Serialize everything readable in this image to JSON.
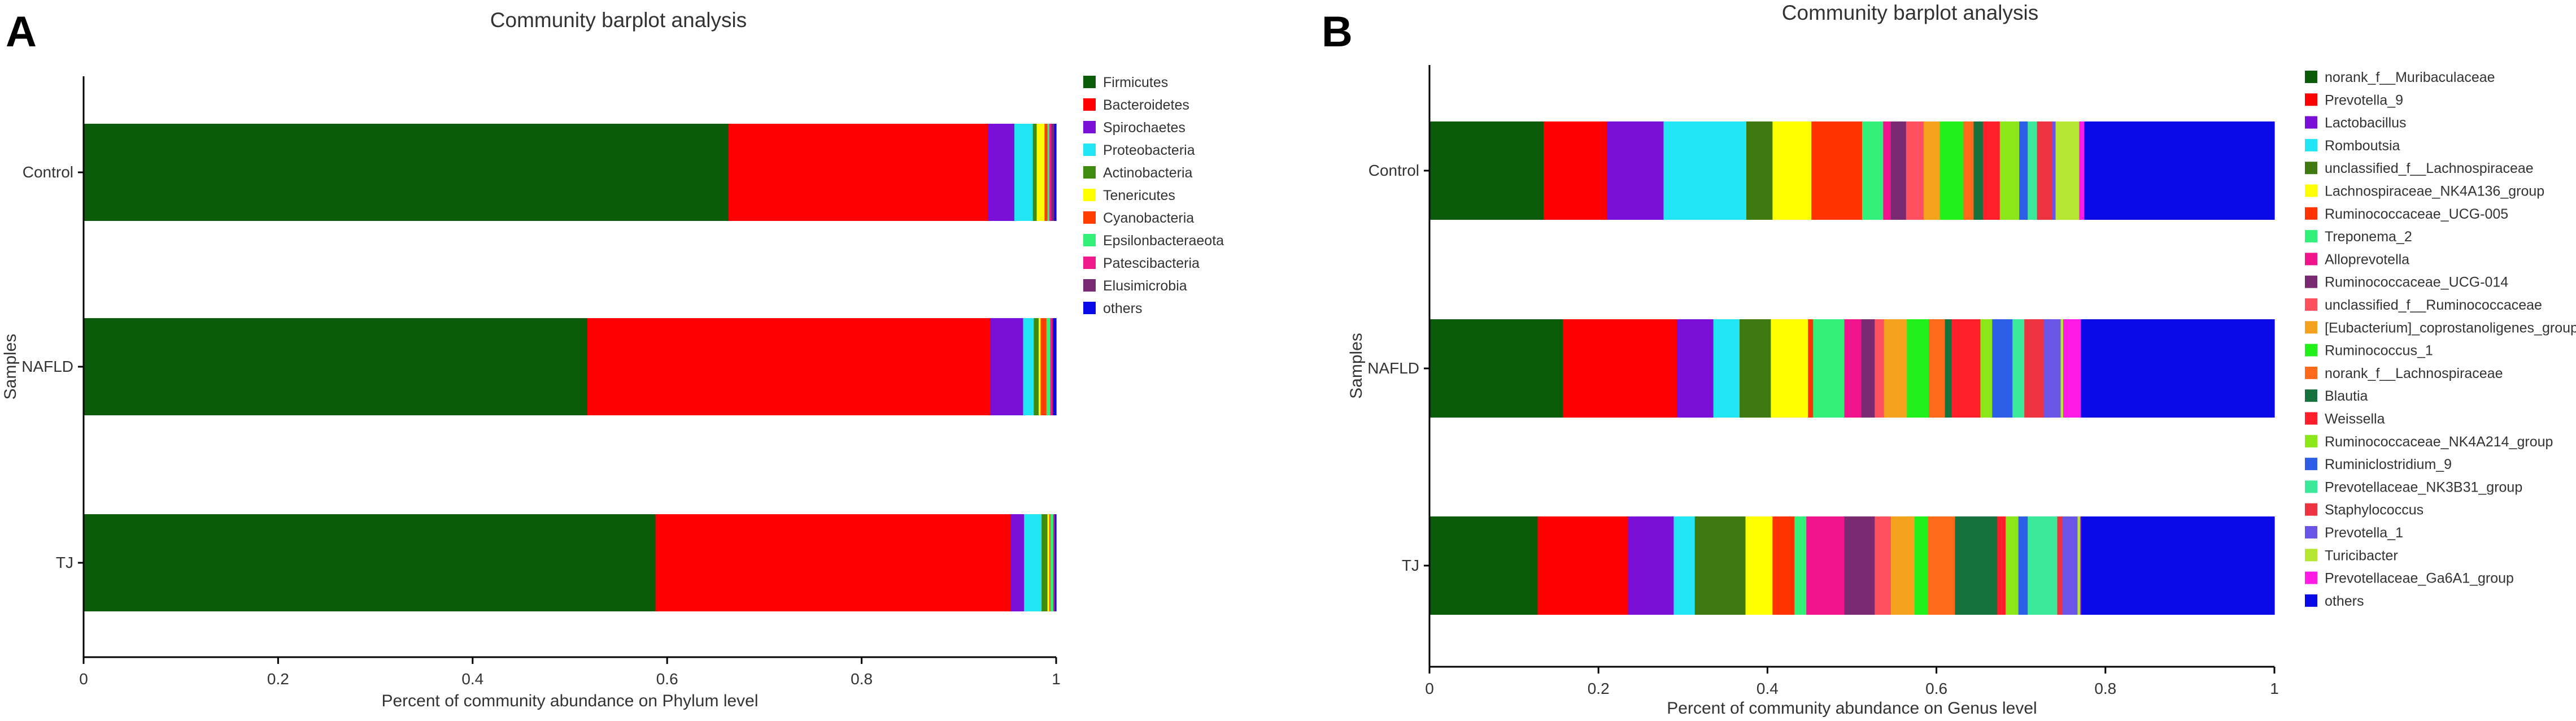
{
  "chart_data": [
    {
      "type": "bar",
      "orientation": "horizontal-stacked",
      "panel_label": "A",
      "title": "Community barplot analysis",
      "xlabel": "Percent of community abundance on Phylum level",
      "ylabel": "Samples",
      "xlim": [
        0,
        1
      ],
      "xticks": [
        "0",
        "0.2",
        "0.4",
        "0.6",
        "0.8",
        "1"
      ],
      "categories": [
        "Control",
        "NAFLD",
        "TJ"
      ],
      "legend_position": "right",
      "series": [
        {
          "name": "Firmicutes",
          "color": "#0a5c0a",
          "values": [
            0.663,
            0.518,
            0.588
          ]
        },
        {
          "name": "Bacteroidetes",
          "color": "#ff0000",
          "values": [
            0.267,
            0.414,
            0.365
          ]
        },
        {
          "name": "Spirochaetes",
          "color": "#7a0fd8",
          "values": [
            0.027,
            0.034,
            0.014
          ]
        },
        {
          "name": "Proteobacteria",
          "color": "#22e6f5",
          "values": [
            0.019,
            0.011,
            0.018
          ]
        },
        {
          "name": "Actinobacteria",
          "color": "#3f8a0f",
          "values": [
            0.004,
            0.005,
            0.006
          ]
        },
        {
          "name": "Tenericutes",
          "color": "#ffff00",
          "values": [
            0.008,
            0.002,
            0.002
          ]
        },
        {
          "name": "Cyanobacteria",
          "color": "#ff3d00",
          "values": [
            0.003,
            0.006,
            0.001
          ]
        },
        {
          "name": "Epsilonbacteraeota",
          "color": "#33f07a",
          "values": [
            0.002,
            0.004,
            0.003
          ]
        },
        {
          "name": "Patescibacteria",
          "color": "#f01a8c",
          "values": [
            0.002,
            0.002,
            0.001
          ]
        },
        {
          "name": "Elusimicrobia",
          "color": "#7a2a70",
          "values": [
            0.003,
            0.001,
            0.001
          ]
        },
        {
          "name": "others",
          "color": "#0a0ae6",
          "values": [
            0.002,
            0.003,
            0.001
          ]
        }
      ]
    },
    {
      "type": "bar",
      "orientation": "horizontal-stacked",
      "panel_label": "B",
      "title": "Community barplot analysis",
      "xlabel": "Percent of community abundance on Genus level",
      "ylabel": "Samples",
      "xlim": [
        0,
        1
      ],
      "xticks": [
        "0",
        "0.2",
        "0.4",
        "0.6",
        "0.8",
        "1"
      ],
      "categories": [
        "Control",
        "NAFLD",
        "TJ"
      ],
      "legend_position": "right",
      "series": [
        {
          "name": "norank_f__Muribaculaceae",
          "color": "#0a5c0a",
          "values": [
            0.135,
            0.158,
            0.128
          ]
        },
        {
          "name": "Prevotella_9",
          "color": "#ff0000",
          "values": [
            0.075,
            0.135,
            0.107
          ]
        },
        {
          "name": "Lactobacillus",
          "color": "#7a0fd8",
          "values": [
            0.067,
            0.043,
            0.054
          ]
        },
        {
          "name": "Romboutsia",
          "color": "#22e6f5",
          "values": [
            0.098,
            0.031,
            0.025
          ]
        },
        {
          "name": "unclassified_f__Lachnospiraceae",
          "color": "#3f7a10",
          "values": [
            0.031,
            0.037,
            0.06
          ]
        },
        {
          "name": "Lachnospiraceae_NK4A136_group",
          "color": "#ffff00",
          "values": [
            0.046,
            0.044,
            0.032
          ]
        },
        {
          "name": "Ruminococcaceae_UCG-005",
          "color": "#ff3300",
          "values": [
            0.06,
            0.006,
            0.026
          ]
        },
        {
          "name": "Treponema_2",
          "color": "#33f07a",
          "values": [
            0.025,
            0.037,
            0.014
          ]
        },
        {
          "name": "Alloprevotella",
          "color": "#f0148c",
          "values": [
            0.009,
            0.02,
            0.045
          ]
        },
        {
          "name": "Ruminococcaceae_UCG-014",
          "color": "#7a2a70",
          "values": [
            0.018,
            0.016,
            0.036
          ]
        },
        {
          "name": "unclassified_f__Ruminococcaceae",
          "color": "#ff5060",
          "values": [
            0.021,
            0.011,
            0.019
          ]
        },
        {
          "name": "[Eubacterium]_coprostanoligenes_group",
          "color": "#f5a21e",
          "values": [
            0.019,
            0.027,
            0.028
          ]
        },
        {
          "name": "Ruminococcus_1",
          "color": "#22f01a",
          "values": [
            0.028,
            0.026,
            0.016
          ]
        },
        {
          "name": "norank_f__Lachnospiraceae",
          "color": "#ff6a1a",
          "values": [
            0.012,
            0.019,
            0.032
          ]
        },
        {
          "name": "Blautia",
          "color": "#16723c",
          "values": [
            0.011,
            0.008,
            0.05
          ]
        },
        {
          "name": "Weissella",
          "color": "#ff1f2a",
          "values": [
            0.02,
            0.034,
            0.01
          ]
        },
        {
          "name": "Ruminococcaceae_NK4A214_group",
          "color": "#8be61a",
          "values": [
            0.023,
            0.014,
            0.015
          ]
        },
        {
          "name": "Ruminiclostridium_9",
          "color": "#2c5ee6",
          "values": [
            0.01,
            0.024,
            0.011
          ]
        },
        {
          "name": "Prevotellaceae_NK3B31_group",
          "color": "#3ce89a",
          "values": [
            0.011,
            0.014,
            0.035
          ]
        },
        {
          "name": "Staphylococcus",
          "color": "#ee3340",
          "values": [
            0.018,
            0.023,
            0.006
          ]
        },
        {
          "name": "Prevotella_1",
          "color": "#6a55e6",
          "values": [
            0.004,
            0.02,
            0.018
          ]
        },
        {
          "name": "Turicibacter",
          "color": "#b4e632",
          "values": [
            0.028,
            0.003,
            0.003
          ]
        },
        {
          "name": "Prevotellaceae_Ga6A1_group",
          "color": "#ff1ae6",
          "values": [
            0.006,
            0.021,
            0.001
          ]
        },
        {
          "name": "others",
          "color": "#0a0ae6",
          "values": [
            0.225,
            0.229,
            0.229
          ]
        }
      ]
    }
  ]
}
